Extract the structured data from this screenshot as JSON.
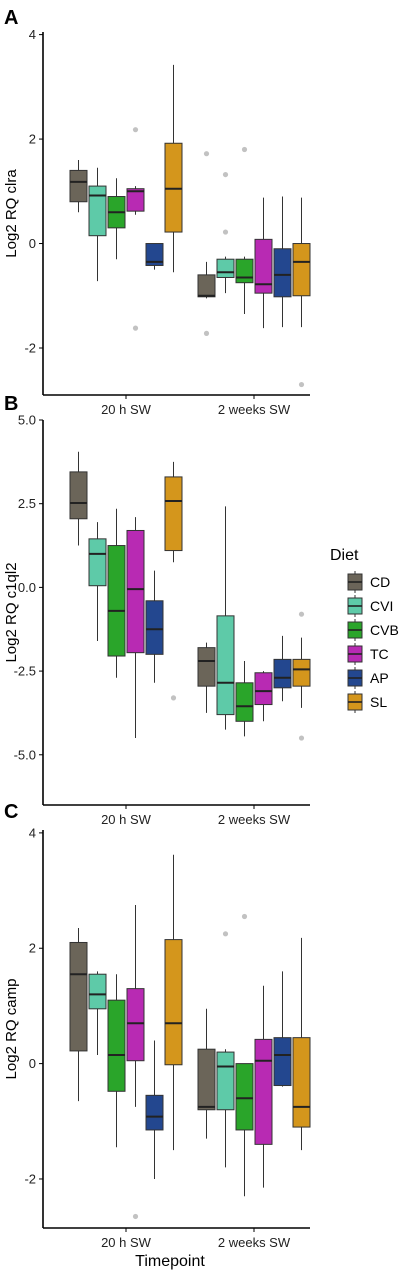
{
  "chart_data": [
    {
      "panel": "A",
      "type": "box",
      "ylabel": "Log2 RQ clra",
      "xlabel": "",
      "categories": [
        "20 h SW",
        "2 weeks SW"
      ],
      "yticks": [
        4,
        2,
        0,
        -2
      ],
      "ytick_labels": [
        "4",
        "2",
        "0",
        "-2"
      ],
      "ylim": [
        -2.9,
        4.05
      ],
      "series": [
        {
          "name": "CD",
          "boxes": [
            {
              "lo": 0.6,
              "q1": 0.8,
              "med": 1.18,
              "q3": 1.4,
              "hi": 1.6,
              "outliers": []
            },
            {
              "lo": -1.05,
              "q1": -1.02,
              "med": -1.0,
              "q3": -0.6,
              "hi": -0.35,
              "outliers": [
                1.72,
                -1.72
              ]
            }
          ]
        },
        {
          "name": "CVI",
          "boxes": [
            {
              "lo": -0.72,
              "q1": 0.15,
              "med": 0.92,
              "q3": 1.1,
              "hi": 1.45,
              "outliers": []
            },
            {
              "lo": -0.95,
              "q1": -0.65,
              "med": -0.55,
              "q3": -0.3,
              "hi": -0.25,
              "outliers": [
                1.32,
                0.22
              ]
            }
          ]
        },
        {
          "name": "CVB",
          "boxes": [
            {
              "lo": -0.3,
              "q1": 0.3,
              "med": 0.6,
              "q3": 0.9,
              "hi": 1.25,
              "outliers": []
            },
            {
              "lo": -1.35,
              "q1": -0.75,
              "med": -0.65,
              "q3": -0.3,
              "hi": -0.25,
              "outliers": [
                1.8
              ]
            }
          ]
        },
        {
          "name": "TC",
          "boxes": [
            {
              "lo": 0.55,
              "q1": 0.62,
              "med": 1.0,
              "q3": 1.05,
              "hi": 1.1,
              "outliers": [
                2.18,
                -1.62
              ]
            },
            {
              "lo": -1.62,
              "q1": -0.95,
              "med": -0.78,
              "q3": 0.08,
              "hi": 0.88,
              "outliers": []
            }
          ]
        },
        {
          "name": "AP",
          "boxes": [
            {
              "lo": -0.5,
              "q1": -0.42,
              "med": -0.35,
              "q3": 0.0,
              "hi": 0.0,
              "outliers": []
            },
            {
              "lo": -1.6,
              "q1": -1.02,
              "med": -0.6,
              "q3": -0.1,
              "hi": 0.9,
              "outliers": []
            }
          ]
        },
        {
          "name": "SL",
          "boxes": [
            {
              "lo": -0.55,
              "q1": 0.22,
              "med": 1.05,
              "q3": 1.92,
              "hi": 3.42,
              "outliers": []
            },
            {
              "lo": -1.6,
              "q1": -1.0,
              "med": -0.35,
              "q3": 0.0,
              "hi": 0.88,
              "outliers": [
                -2.7
              ]
            }
          ]
        }
      ]
    },
    {
      "panel": "B",
      "type": "box",
      "ylabel": "Log2 RQ c1ql2",
      "xlabel": "",
      "categories": [
        "20 h SW",
        "2 weeks SW"
      ],
      "yticks": [
        5,
        2.5,
        0,
        -2.5,
        -5
      ],
      "ytick_labels": [
        "5.0",
        "2.5",
        "0.0",
        "-2.5",
        "-5.0"
      ],
      "ylim": [
        -6.5,
        5.0
      ],
      "series": [
        {
          "name": "CD",
          "boxes": [
            {
              "lo": 1.25,
              "q1": 2.05,
              "med": 2.52,
              "q3": 3.45,
              "hi": 4.05,
              "outliers": []
            },
            {
              "lo": -3.75,
              "q1": -2.95,
              "med": -2.2,
              "q3": -1.8,
              "hi": -1.65,
              "outliers": []
            }
          ]
        },
        {
          "name": "CVI",
          "boxes": [
            {
              "lo": -1.6,
              "q1": 0.05,
              "med": 1.0,
              "q3": 1.45,
              "hi": 1.95,
              "outliers": []
            },
            {
              "lo": -4.25,
              "q1": -3.8,
              "med": -2.85,
              "q3": -0.85,
              "hi": 2.42,
              "outliers": []
            }
          ]
        },
        {
          "name": "CVB",
          "boxes": [
            {
              "lo": -2.7,
              "q1": -2.05,
              "med": -0.7,
              "q3": 1.25,
              "hi": 2.35,
              "outliers": []
            },
            {
              "lo": -4.45,
              "q1": -4.0,
              "med": -3.55,
              "q3": -2.85,
              "hi": -2.2,
              "outliers": []
            }
          ]
        },
        {
          "name": "TC",
          "boxes": [
            {
              "lo": -4.5,
              "q1": -1.95,
              "med": -0.05,
              "q3": 1.7,
              "hi": 2.1,
              "outliers": []
            },
            {
              "lo": -4.0,
              "q1": -3.5,
              "med": -3.1,
              "q3": -2.55,
              "hi": -2.5,
              "outliers": []
            }
          ]
        },
        {
          "name": "AP",
          "boxes": [
            {
              "lo": -2.85,
              "q1": -2.0,
              "med": -1.25,
              "q3": -0.4,
              "hi": 0.5,
              "outliers": []
            },
            {
              "lo": -3.4,
              "q1": -3.0,
              "med": -2.7,
              "q3": -2.15,
              "hi": -1.45,
              "outliers": []
            }
          ]
        },
        {
          "name": "SL",
          "boxes": [
            {
              "lo": 0.75,
              "q1": 1.1,
              "med": 2.58,
              "q3": 3.3,
              "hi": 3.75,
              "outliers": [
                -3.3
              ]
            },
            {
              "lo": -3.6,
              "q1": -2.95,
              "med": -2.45,
              "q3": -2.15,
              "hi": -1.5,
              "outliers": [
                -0.8,
                -4.5
              ]
            }
          ]
        }
      ]
    },
    {
      "panel": "C",
      "type": "box",
      "ylabel": "Log2 RQ camp",
      "xlabel": "Timepoint",
      "categories": [
        "20 h SW",
        "2 weeks SW"
      ],
      "yticks": [
        4,
        2,
        0,
        -2
      ],
      "ytick_labels": [
        "4",
        "2",
        "0",
        "-2"
      ],
      "ylim": [
        -2.85,
        4.05
      ],
      "series": [
        {
          "name": "CD",
          "boxes": [
            {
              "lo": -0.65,
              "q1": 0.22,
              "med": 1.55,
              "q3": 2.1,
              "hi": 2.35,
              "outliers": []
            },
            {
              "lo": -1.3,
              "q1": -0.8,
              "med": -0.75,
              "q3": 0.25,
              "hi": 0.95,
              "outliers": []
            }
          ]
        },
        {
          "name": "CVI",
          "boxes": [
            {
              "lo": 0.15,
              "q1": 0.95,
              "med": 1.2,
              "q3": 1.55,
              "hi": 1.6,
              "outliers": []
            },
            {
              "lo": -1.8,
              "q1": -0.8,
              "med": -0.05,
              "q3": 0.2,
              "hi": 0.25,
              "outliers": [
                2.25
              ]
            }
          ]
        },
        {
          "name": "CVB",
          "boxes": [
            {
              "lo": -1.45,
              "q1": -0.48,
              "med": 0.15,
              "q3": 1.1,
              "hi": 1.55,
              "outliers": []
            },
            {
              "lo": -2.3,
              "q1": -1.15,
              "med": -0.6,
              "q3": 0.0,
              "hi": 0.0,
              "outliers": [
                2.55
              ]
            }
          ]
        },
        {
          "name": "TC",
          "boxes": [
            {
              "lo": -0.75,
              "q1": 0.05,
              "med": 0.7,
              "q3": 1.3,
              "hi": 2.75,
              "outliers": [
                -2.65
              ]
            },
            {
              "lo": -2.15,
              "q1": -1.4,
              "med": 0.05,
              "q3": 0.42,
              "hi": 1.35,
              "outliers": []
            }
          ]
        },
        {
          "name": "AP",
          "boxes": [
            {
              "lo": -2.0,
              "q1": -1.15,
              "med": -0.92,
              "q3": -0.55,
              "hi": 0.4,
              "outliers": []
            },
            {
              "lo": -0.4,
              "q1": -0.38,
              "med": 0.15,
              "q3": 0.45,
              "hi": 1.6,
              "outliers": []
            }
          ]
        },
        {
          "name": "SL",
          "boxes": [
            {
              "lo": -1.5,
              "q1": -0.02,
              "med": 0.7,
              "q3": 2.15,
              "hi": 3.62,
              "outliers": []
            },
            {
              "lo": -1.5,
              "q1": -1.1,
              "med": -0.75,
              "q3": 0.45,
              "hi": 2.18,
              "outliers": []
            }
          ]
        }
      ]
    }
  ],
  "legend": {
    "title": "Diet",
    "placement": "right",
    "items": [
      {
        "label": "CD",
        "color": "#6b6559"
      },
      {
        "label": "CVI",
        "color": "#5ecaa8"
      },
      {
        "label": "CVB",
        "color": "#2aa52a"
      },
      {
        "label": "TC",
        "color": "#b82ab3"
      },
      {
        "label": "AP",
        "color": "#23478f"
      },
      {
        "label": "SL",
        "color": "#d4961c"
      }
    ]
  },
  "style": {
    "outlier_color": "#c2c2c2",
    "line_color": "#333333"
  }
}
